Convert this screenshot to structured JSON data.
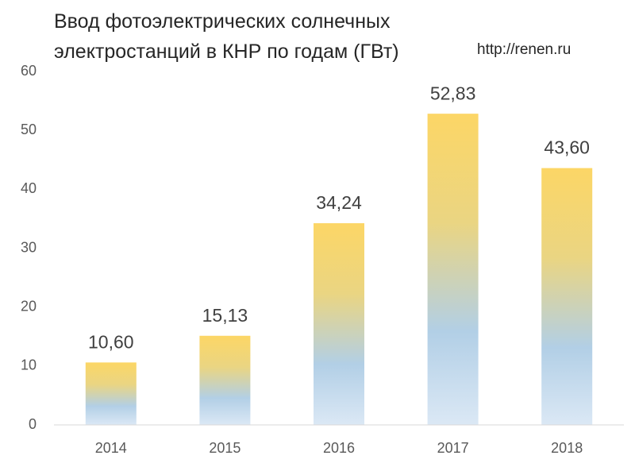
{
  "chart_data": {
    "type": "bar",
    "title": "Ввод фотоэлектрических солнечных электростанций в КНР по годам (ГВт)",
    "source": "http://renen.ru",
    "categories": [
      "2014",
      "2015",
      "2016",
      "2017",
      "2018"
    ],
    "values": [
      10.6,
      15.13,
      34.24,
      52.83,
      43.6
    ],
    "value_labels": [
      "10,60",
      "15,13",
      "34,24",
      "52,83",
      "43,60"
    ],
    "ylim": [
      0,
      60
    ],
    "yticks": [
      0,
      10,
      20,
      30,
      40,
      50,
      60
    ],
    "grid": false
  }
}
